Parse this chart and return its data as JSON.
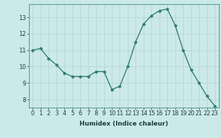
{
  "x": [
    0,
    1,
    2,
    3,
    4,
    5,
    6,
    7,
    8,
    9,
    10,
    11,
    12,
    13,
    14,
    15,
    16,
    17,
    18,
    19,
    20,
    21,
    22,
    23
  ],
  "y": [
    11.0,
    11.1,
    10.5,
    10.1,
    9.6,
    9.4,
    9.4,
    9.4,
    9.7,
    9.7,
    8.6,
    8.8,
    10.0,
    11.5,
    12.6,
    13.1,
    13.4,
    13.5,
    12.5,
    11.0,
    9.8,
    9.0,
    8.2,
    7.6
  ],
  "bg_color": "#cce9e9",
  "grid_color": "#b8d8d8",
  "line_color": "#2e7d6e",
  "marker_color": "#2e7d6e",
  "xlabel": "Humidex (Indice chaleur)",
  "ylim": [
    7.5,
    13.8
  ],
  "xlim": [
    -0.5,
    23.5
  ],
  "yticks": [
    8,
    9,
    10,
    11,
    12,
    13
  ],
  "xticks": [
    0,
    1,
    2,
    3,
    4,
    5,
    6,
    7,
    8,
    9,
    10,
    11,
    12,
    13,
    14,
    15,
    16,
    17,
    18,
    19,
    20,
    21,
    22,
    23
  ],
  "xtick_labels": [
    "0",
    "1",
    "2",
    "3",
    "4",
    "5",
    "6",
    "7",
    "8",
    "9",
    "10",
    "11",
    "12",
    "13",
    "14",
    "15",
    "16",
    "17",
    "18",
    "19",
    "20",
    "21",
    "22",
    "23"
  ],
  "line_width": 1.0,
  "marker_size": 2.5,
  "font_size_label": 6.5,
  "font_size_tick": 6.0
}
